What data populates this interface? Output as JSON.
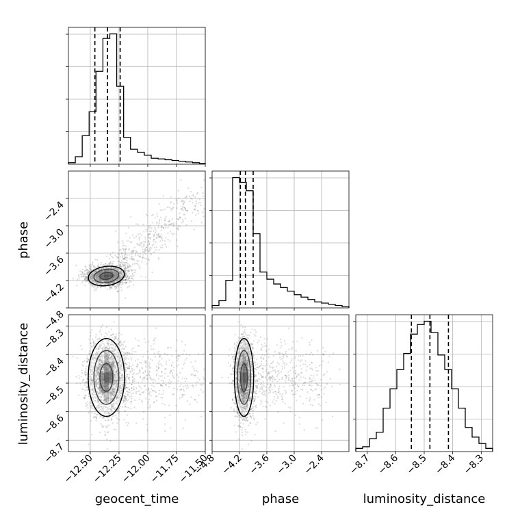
{
  "chart_data": {
    "type": "corner",
    "title": "",
    "parameters": [
      "geocent_time",
      "phase",
      "luminosity_distance"
    ],
    "ranges": {
      "geocent_time": [
        -12.69,
        -11.5
      ],
      "phase": [
        -4.8,
        -1.8
      ],
      "luminosity_distance": [
        -8.74,
        -8.26
      ]
    },
    "ticks": {
      "geocent_time": [
        "−12.50",
        "−12.25",
        "−12.00",
        "−11.75",
        "−11.50"
      ],
      "phase": [
        "−4.8",
        "−4.2",
        "−3.6",
        "−3.0",
        "−2.4"
      ],
      "luminosity_distance": [
        "−8.7",
        "−8.6",
        "−8.5",
        "−8.4",
        "−8.3"
      ]
    },
    "tick_values": {
      "geocent_time": [
        -12.5,
        -12.25,
        -12.0,
        -11.75,
        -11.5
      ],
      "phase": [
        -4.8,
        -4.2,
        -3.6,
        -3.0,
        -2.4
      ],
      "luminosity_distance": [
        -8.7,
        -8.6,
        -8.5,
        -8.4,
        -8.3
      ]
    },
    "quantiles": {
      "geocent_time": [
        -12.46,
        -12.35,
        -12.24
      ],
      "phase": [
        -4.18,
        -4.07,
        -3.9
      ],
      "luminosity_distance": [
        -8.545,
        -8.48,
        -8.415
      ]
    },
    "histograms": {
      "geocent_time": {
        "bin_edges": [
          -12.69,
          -12.63,
          -12.57,
          -12.51,
          -12.45,
          -12.39,
          -12.33,
          -12.27,
          -12.21,
          -12.15,
          -12.09,
          -12.03,
          -11.97,
          -11.91,
          -11.85,
          -11.79,
          -11.73,
          -11.67,
          -11.61,
          -11.55,
          -11.5
        ],
        "counts": [
          1,
          5,
          19,
          35,
          62,
          84,
          87,
          52,
          18,
          10,
          8,
          6,
          4,
          3.5,
          3,
          2.5,
          2,
          1.5,
          1,
          0.5
        ]
      },
      "phase": {
        "bin_edges": [
          -4.8,
          -4.65,
          -4.5,
          -4.35,
          -4.2,
          -4.05,
          -3.9,
          -3.75,
          -3.6,
          -3.45,
          -3.3,
          -3.15,
          -3.0,
          -2.85,
          -2.7,
          -2.55,
          -2.4,
          -2.25,
          -2.1,
          -1.95,
          -1.8
        ],
        "counts": [
          2,
          6,
          23,
          109,
          105,
          98,
          62,
          30,
          24,
          20,
          17,
          14,
          11,
          9,
          7,
          5,
          4,
          3,
          2,
          1
        ]
      },
      "luminosity_distance": {
        "bin_edges": [
          -8.74,
          -8.716,
          -8.692,
          -8.668,
          -8.644,
          -8.62,
          -8.596,
          -8.572,
          -8.548,
          -8.524,
          -8.5,
          -8.476,
          -8.452,
          -8.428,
          -8.404,
          -8.38,
          -8.356,
          -8.332,
          -8.308,
          -8.284,
          -8.26
        ],
        "counts": [
          2,
          3,
          8,
          12,
          27,
          39,
          51,
          61,
          73,
          79,
          81,
          74,
          60,
          51,
          39,
          27,
          15,
          9,
          5,
          2
        ]
      }
    },
    "grid": true,
    "legend": "none"
  }
}
